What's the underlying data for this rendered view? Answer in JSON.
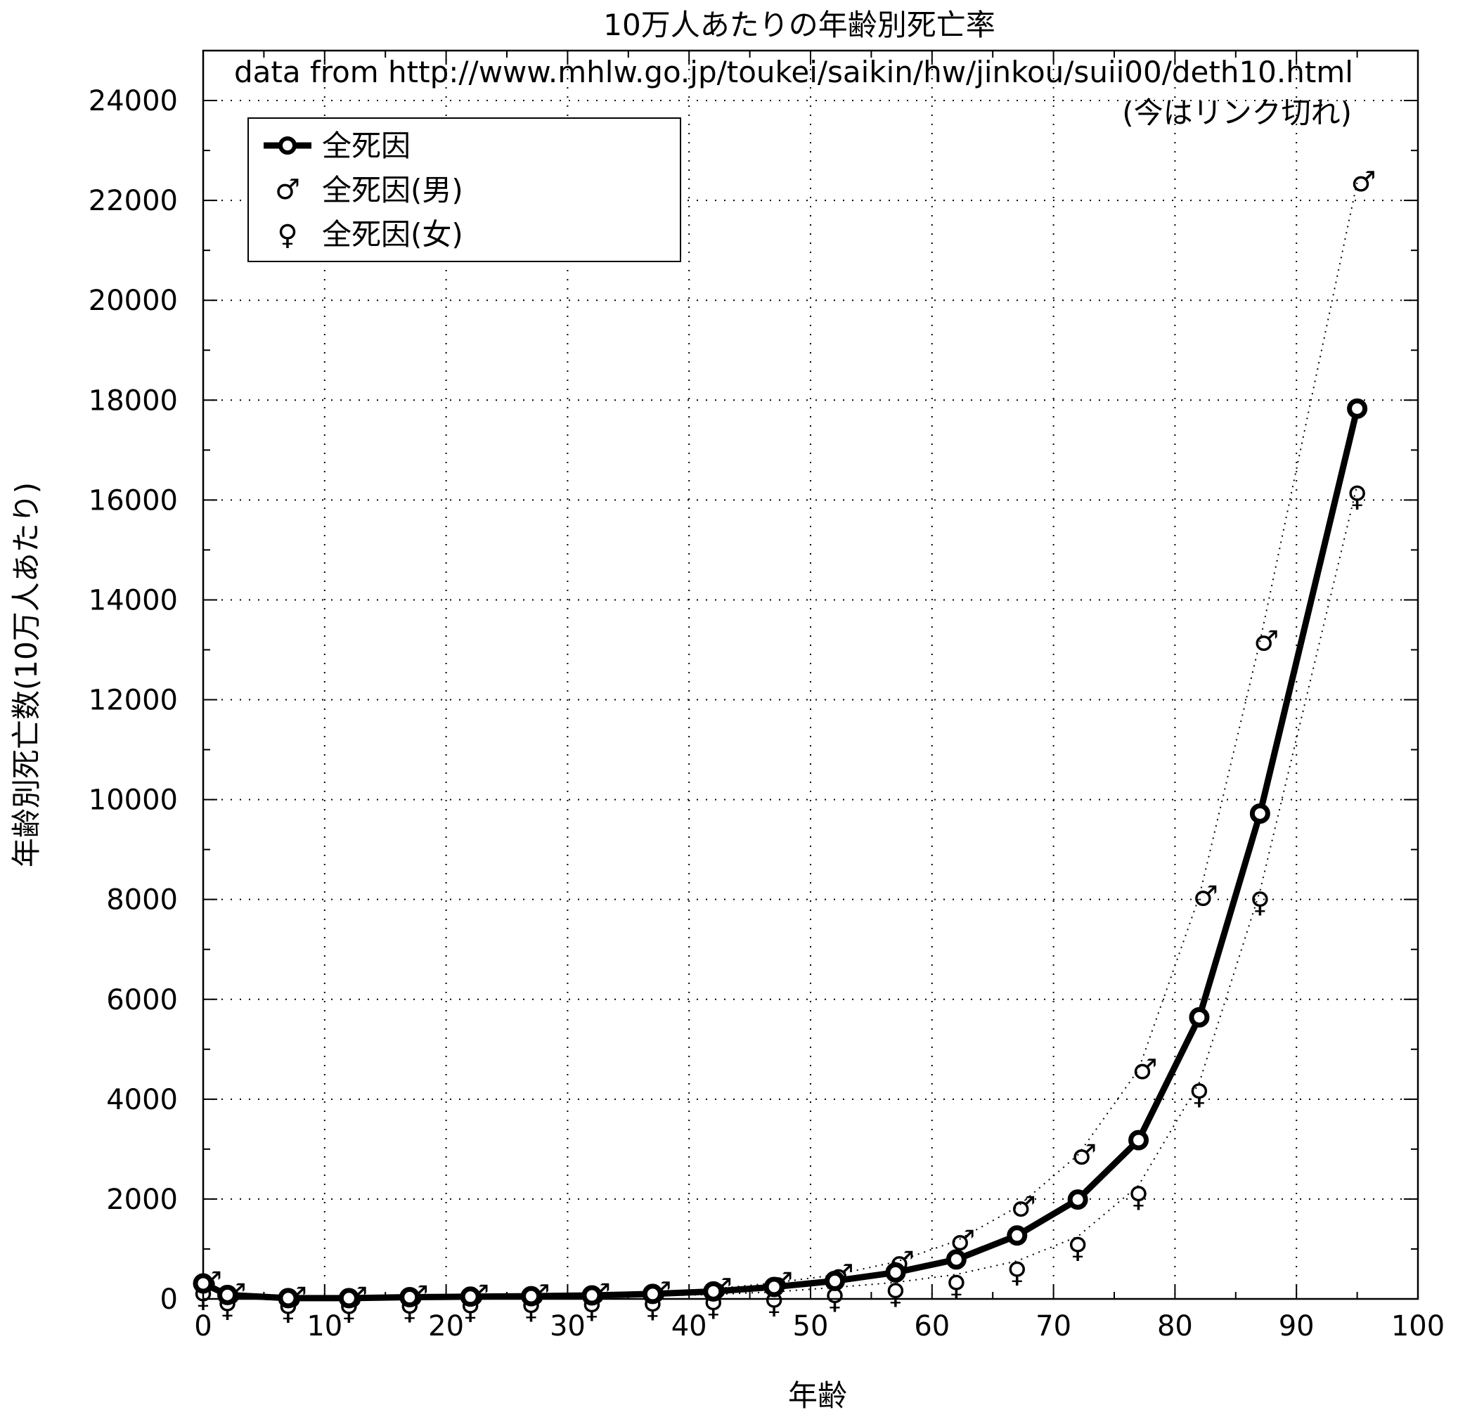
{
  "chart_data": {
    "type": "line",
    "title": "10万人あたりの年齢別死亡率",
    "xlabel": "年齢",
    "ylabel": "年齢別死亡数(10万人あたり)",
    "annotation_line1": "data from http://www.mhlw.go.jp/toukei/saikin/hw/jinkou/suii00/deth10.html",
    "annotation_line2": "(今はリンク切れ)",
    "xlim": [
      0,
      100
    ],
    "ylim": [
      0,
      25000
    ],
    "x_ticks": [
      "0",
      "10",
      "20",
      "30",
      "40",
      "50",
      "60",
      "70",
      "80",
      "90",
      "100"
    ],
    "y_ticks": [
      "0",
      "2000",
      "4000",
      "6000",
      "8000",
      "10000",
      "12000",
      "14000",
      "16000",
      "18000",
      "20000",
      "22000",
      "24000"
    ],
    "grid": true,
    "legend_position": "top-left",
    "x": [
      0,
      2,
      7,
      12,
      17,
      22,
      27,
      32,
      37,
      42,
      47,
      52,
      57,
      62,
      67,
      72,
      77,
      82,
      87,
      95
    ],
    "series": [
      {
        "name": "全死因",
        "style": "thick-line-circle",
        "values": [
          310,
          80,
          15,
          15,
          35,
          45,
          55,
          70,
          100,
          150,
          240,
          360,
          530,
          790,
          1270,
          1990,
          3180,
          5640,
          9720,
          17830
        ]
      },
      {
        "name": "全死因(男)",
        "style": "dotted-male-symbol",
        "symbol": "♂",
        "values": [
          330,
          90,
          20,
          20,
          50,
          65,
          70,
          90,
          130,
          200,
          320,
          480,
          740,
          1160,
          1840,
          2880,
          4590,
          8060,
          13170,
          22370
        ]
      },
      {
        "name": "全死因(女)",
        "style": "dotted-female-symbol",
        "symbol": "♀",
        "values": [
          270,
          70,
          12,
          12,
          20,
          30,
          35,
          50,
          60,
          90,
          140,
          230,
          330,
          490,
          760,
          1250,
          2270,
          4330,
          8170,
          16300
        ]
      }
    ]
  }
}
